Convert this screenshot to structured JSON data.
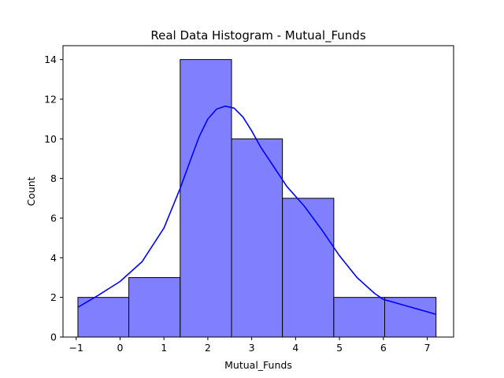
{
  "chart_data": {
    "type": "bar",
    "subtype": "histogram",
    "title": "Real Data Histogram - Mutual_Funds",
    "xlabel": "Mutual_Funds",
    "ylabel": "Count",
    "xlim": [
      -1.3,
      7.6
    ],
    "ylim": [
      0,
      14.7
    ],
    "xticks": [
      -1,
      0,
      1,
      2,
      3,
      4,
      5,
      6,
      7
    ],
    "yticks": [
      0,
      2,
      4,
      6,
      8,
      10,
      12,
      14
    ],
    "grid": false,
    "legend": "none",
    "bin_edges": [
      -0.96,
      0.2,
      1.37,
      2.54,
      3.7,
      4.87,
      6.03,
      7.2
    ],
    "values": [
      2,
      3,
      14,
      10,
      7,
      2,
      2
    ],
    "bar_color": "#8080ff",
    "bar_edge_color": "#000000",
    "kde": {
      "color": "#0000ff",
      "x": [
        -0.96,
        -0.5,
        0.0,
        0.5,
        1.0,
        1.37,
        1.6,
        1.8,
        2.0,
        2.2,
        2.4,
        2.6,
        2.8,
        3.0,
        3.2,
        3.5,
        3.8,
        4.2,
        4.6,
        5.0,
        5.4,
        5.8,
        6.0,
        6.4,
        6.8,
        7.2
      ],
      "y": [
        1.5,
        2.1,
        2.8,
        3.8,
        5.5,
        7.5,
        8.9,
        10.1,
        11.0,
        11.5,
        11.65,
        11.55,
        11.1,
        10.4,
        9.6,
        8.6,
        7.6,
        6.6,
        5.4,
        4.1,
        3.0,
        2.2,
        1.9,
        1.65,
        1.4,
        1.15
      ]
    }
  }
}
